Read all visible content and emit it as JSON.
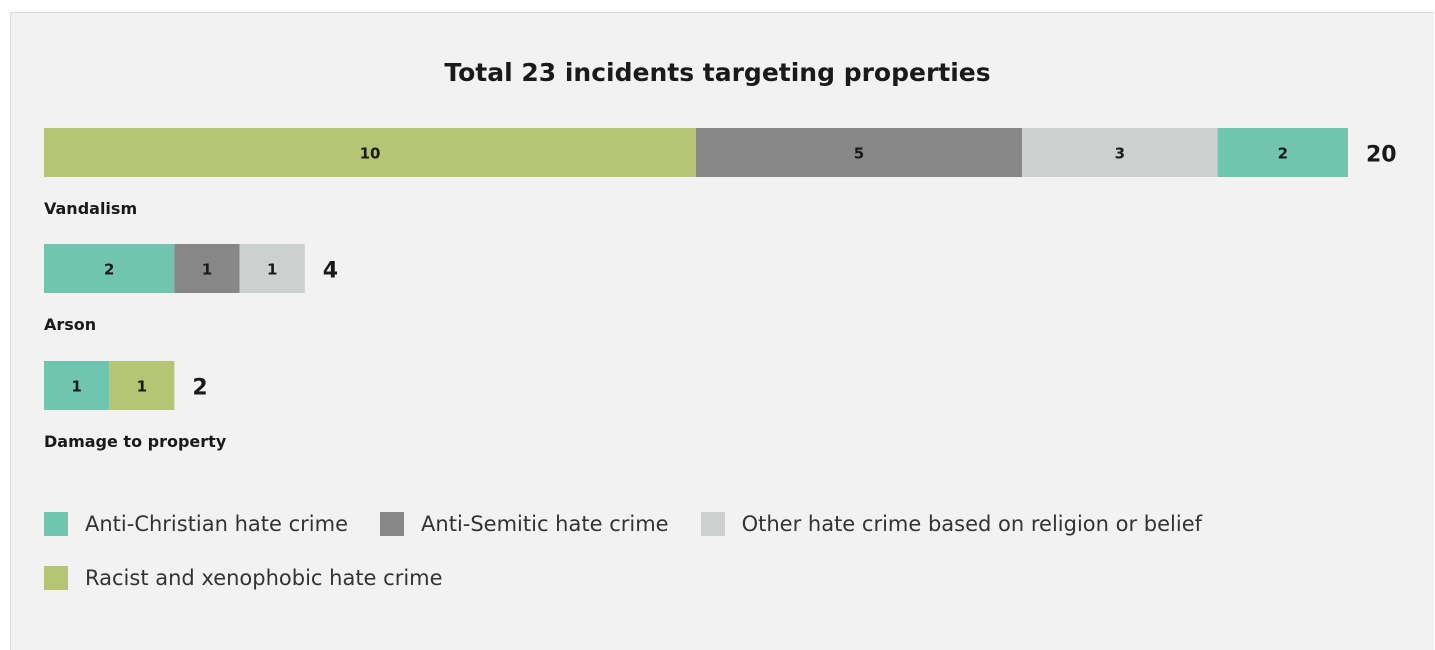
{
  "colors": {
    "anti_christian": "#71c5ae",
    "anti_semitic": "#878787",
    "other_religion": "#ccd0cf",
    "racist": "#b5c574"
  },
  "chart_data": {
    "type": "bar",
    "orientation": "horizontal",
    "stacked": true,
    "title": "Total 23 incidents targeting properties",
    "rows": [
      {
        "category": "Vandalism",
        "total": 20,
        "segments": [
          {
            "series": "Racist and xenophobic hate crime",
            "key": "racist",
            "value": 10
          },
          {
            "series": "Anti-Semitic hate crime",
            "key": "anti_semitic",
            "value": 5
          },
          {
            "series": "Other hate crime based on religion or belief",
            "key": "other_religion",
            "value": 3
          },
          {
            "series": "Anti-Christian hate crime",
            "key": "anti_christian",
            "value": 2
          }
        ]
      },
      {
        "category": "Arson",
        "total": 4,
        "segments": [
          {
            "series": "Anti-Christian hate crime",
            "key": "anti_christian",
            "value": 2
          },
          {
            "series": "Anti-Semitic hate crime",
            "key": "anti_semitic",
            "value": 1
          },
          {
            "series": "Other hate crime based on religion or belief",
            "key": "other_religion",
            "value": 1
          }
        ]
      },
      {
        "category": "Damage to property",
        "total": 2,
        "segments": [
          {
            "series": "Anti-Christian hate crime",
            "key": "anti_christian",
            "value": 1
          },
          {
            "series": "Racist and xenophobic hate crime",
            "key": "racist",
            "value": 1
          }
        ]
      }
    ],
    "legend": [
      {
        "label": "Anti-Christian hate crime",
        "key": "anti_christian"
      },
      {
        "label": "Anti-Semitic hate crime",
        "key": "anti_semitic"
      },
      {
        "label": "Other hate crime based on religion or belief",
        "key": "other_religion"
      },
      {
        "label": "Racist and xenophobic hate crime",
        "key": "racist"
      }
    ],
    "legend_position": "bottom",
    "grid": false,
    "axes_visible": false
  }
}
